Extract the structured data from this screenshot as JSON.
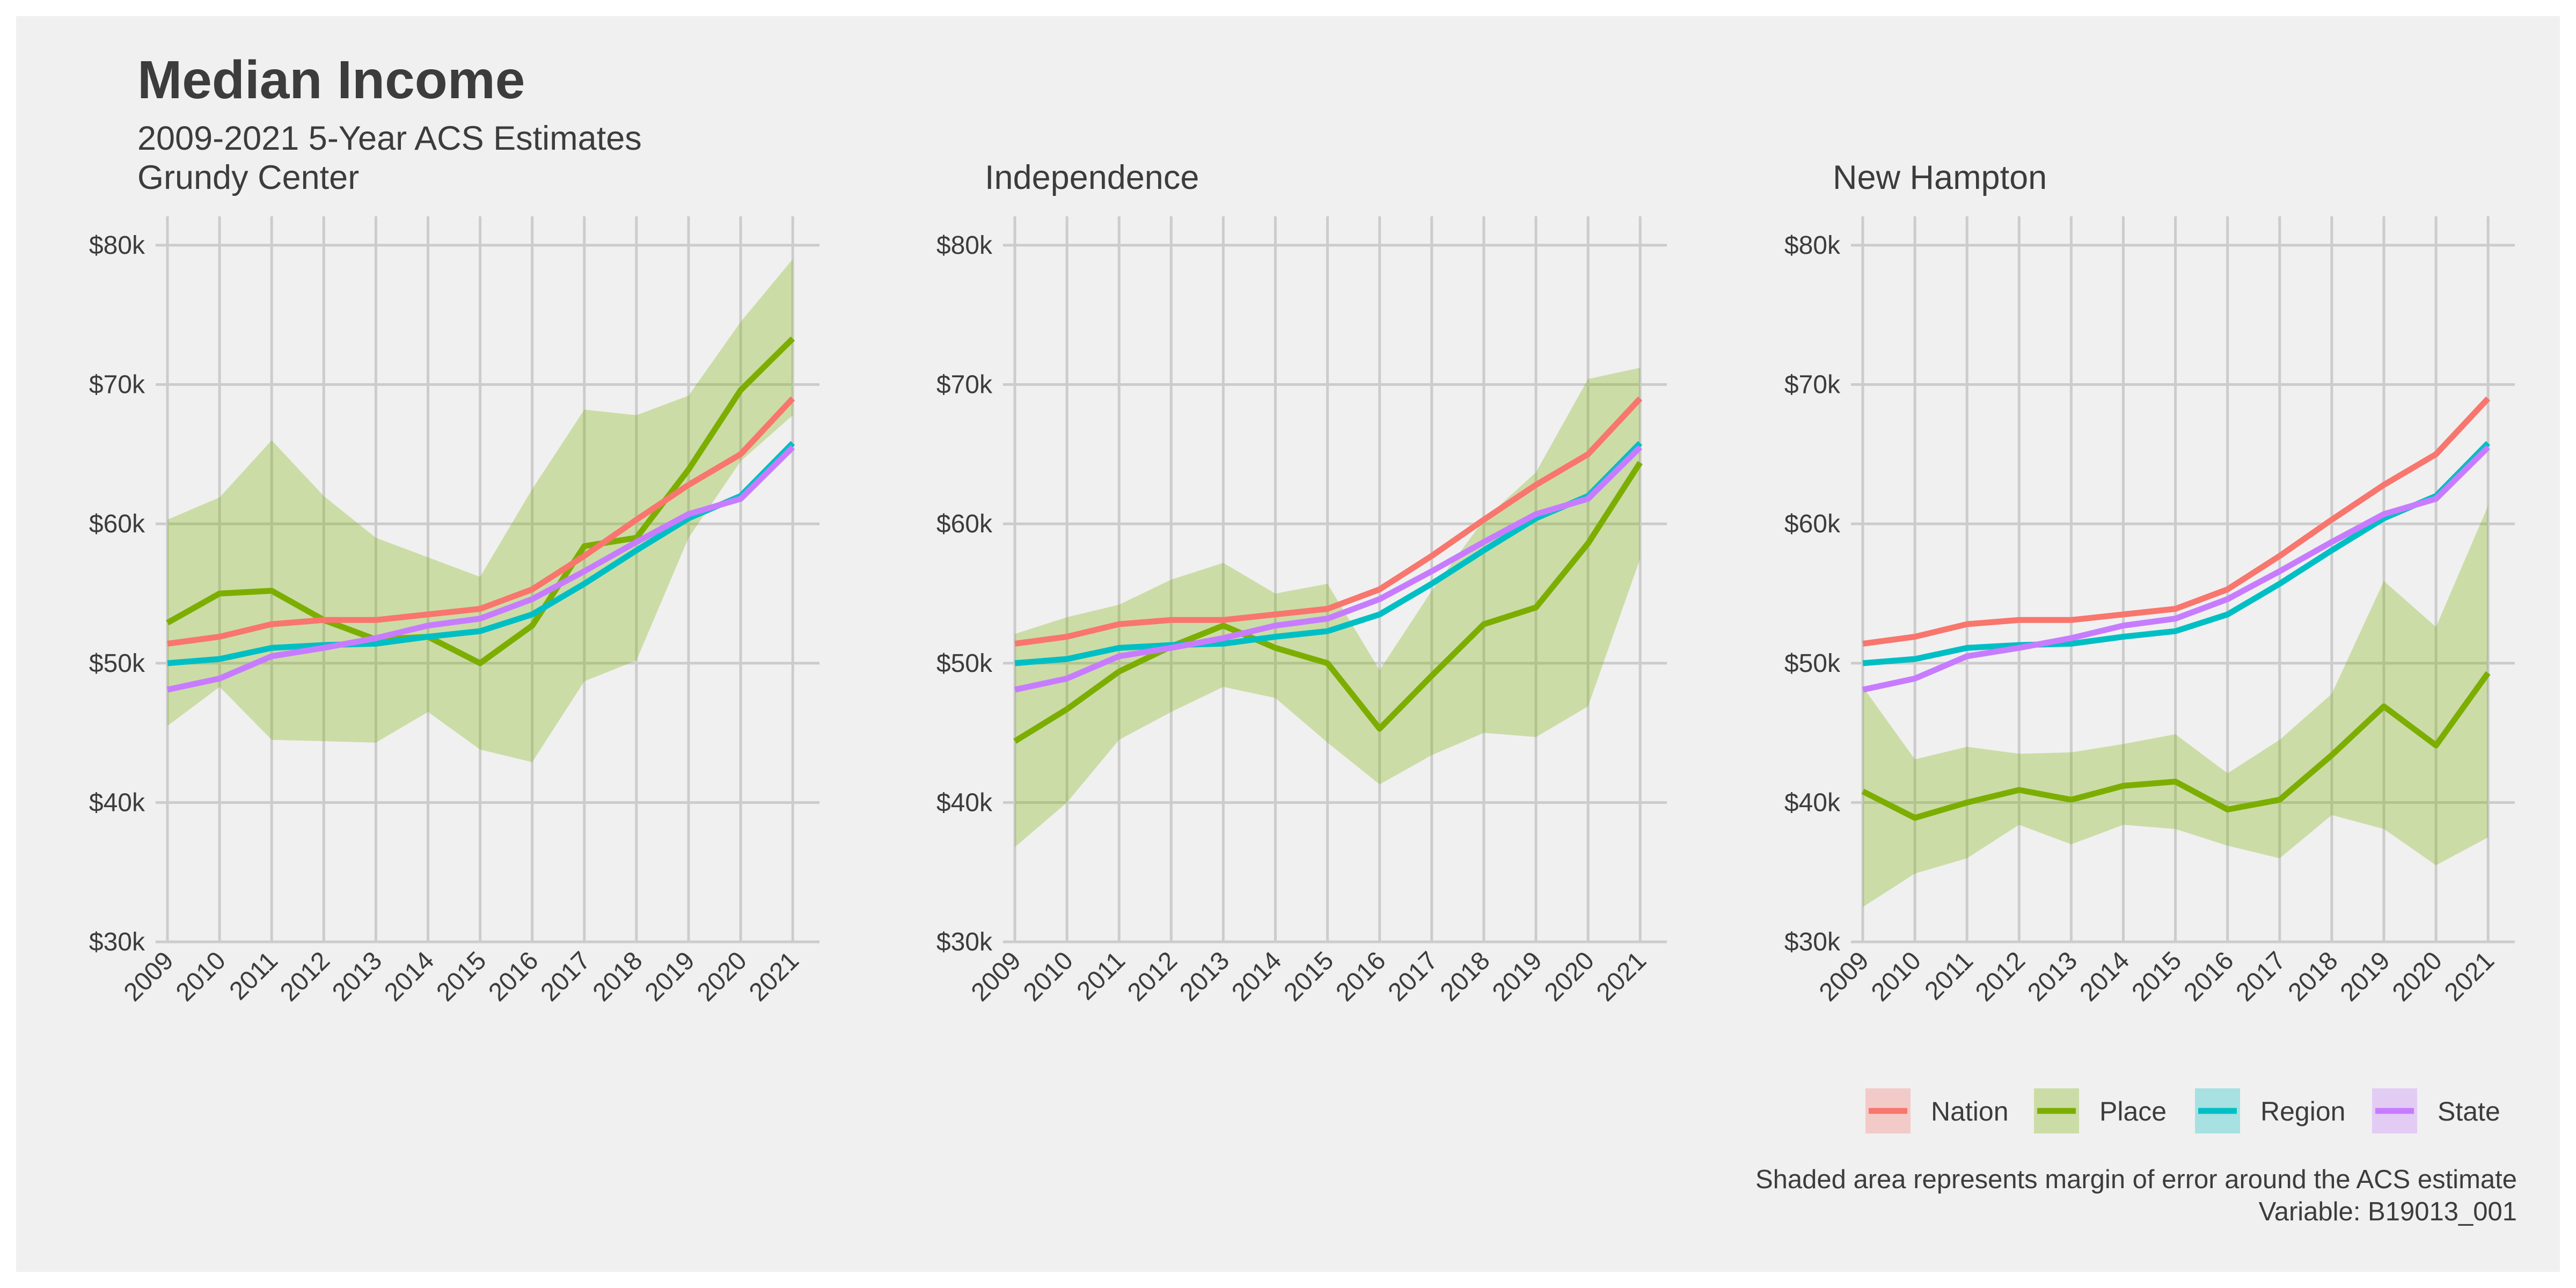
{
  "title": "Median Income",
  "subtitle": "2009-2021 5-Year ACS Estimates",
  "caption": {
    "line1": "Shaded area represents margin of error around the ACS estimate",
    "line2": "Variable: B19013_001"
  },
  "colors": {
    "Nation": "#F8766D",
    "Place": "#7CAE00",
    "Region": "#00BFC4",
    "State": "#C77CFF",
    "background": "#f0f0f0",
    "grid": "#cccccc",
    "text": "#3c3c3c"
  },
  "chart_data": {
    "type": "line",
    "x": [
      2009,
      2010,
      2011,
      2012,
      2013,
      2014,
      2015,
      2016,
      2017,
      2018,
      2019,
      2020,
      2021
    ],
    "ylim": [
      30000,
      82000
    ],
    "yticks": [
      30000,
      40000,
      50000,
      60000,
      70000,
      80000
    ],
    "ytick_labels": [
      "$30k",
      "$40k",
      "$50k",
      "$60k",
      "$70k",
      "$80k"
    ],
    "legend": [
      "Nation",
      "Place",
      "Region",
      "State"
    ],
    "legend_position": "bottom-right",
    "grid": true,
    "shared_series": {
      "Nation": [
        51400,
        51900,
        52800,
        53100,
        53100,
        53500,
        53900,
        55300,
        57700,
        60300,
        62800,
        65000,
        69000
      ],
      "Region": [
        50000,
        50300,
        51100,
        51300,
        51400,
        51900,
        52300,
        53500,
        55700,
        58100,
        60400,
        62000,
        65800
      ],
      "State": [
        48100,
        48900,
        50500,
        51100,
        51800,
        52700,
        53200,
        54600,
        56600,
        58700,
        60700,
        61800,
        65500
      ]
    },
    "panels": [
      {
        "name": "Grundy Center",
        "place": [
          52900,
          55000,
          55200,
          53100,
          51700,
          51900,
          50000,
          52700,
          58400,
          59000,
          63900,
          69600,
          73300
        ],
        "moe_low": [
          45500,
          48300,
          44500,
          44400,
          44300,
          46500,
          43800,
          42900,
          48700,
          50200,
          59000,
          64500,
          67800
        ],
        "moe_high": [
          60300,
          61900,
          66000,
          62000,
          59000,
          57600,
          56200,
          62500,
          68200,
          67800,
          69200,
          74500,
          79000
        ]
      },
      {
        "name": "Independence",
        "place": [
          44400,
          46700,
          49400,
          51200,
          52700,
          51100,
          50000,
          45300,
          49100,
          52800,
          54000,
          58600,
          64400
        ],
        "moe_low": [
          36800,
          40000,
          44500,
          46500,
          48300,
          47500,
          44300,
          41300,
          43400,
          45000,
          44700,
          46900,
          57500
        ],
        "moe_high": [
          52100,
          53300,
          54200,
          56000,
          57200,
          55000,
          55700,
          49500,
          55200,
          60300,
          63700,
          70400,
          71200
        ]
      },
      {
        "name": "New Hampton",
        "place": [
          40800,
          38900,
          40000,
          40900,
          40200,
          41200,
          41500,
          39500,
          40200,
          43400,
          46900,
          44100,
          49300
        ],
        "moe_low": [
          32500,
          34900,
          36000,
          38400,
          37000,
          38400,
          38100,
          36900,
          36000,
          39100,
          38100,
          35500,
          37500
        ],
        "moe_high": [
          48300,
          43100,
          44000,
          43500,
          43600,
          44200,
          44900,
          42100,
          44500,
          47800,
          55900,
          52600,
          61300
        ]
      }
    ]
  }
}
